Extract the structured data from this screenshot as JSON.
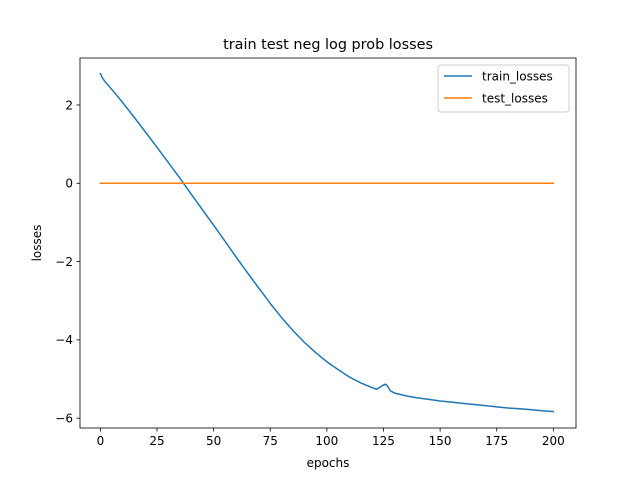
{
  "chart_data": {
    "type": "line",
    "title": "train test neg log prob losses",
    "xlabel": "epochs",
    "ylabel": "losses",
    "xlim": [
      -9,
      210
    ],
    "ylim": [
      -6.25,
      3.2
    ],
    "xticks": [
      0,
      25,
      50,
      75,
      100,
      125,
      150,
      175,
      200
    ],
    "yticks": [
      -6,
      -4,
      -2,
      0,
      2
    ],
    "ytick_labels": [
      "−6",
      "−4",
      "−2",
      "0",
      "2"
    ],
    "grid": false,
    "legend_position": "upper-right",
    "series": [
      {
        "name": "train_losses",
        "color": "#1f77b4",
        "x": [
          0,
          1,
          2,
          5,
          10,
          15,
          20,
          25,
          30,
          35,
          40,
          45,
          50,
          55,
          60,
          65,
          70,
          75,
          80,
          85,
          90,
          95,
          100,
          105,
          110,
          115,
          120,
          122,
          125,
          126,
          127,
          128,
          130,
          135,
          140,
          145,
          150,
          155,
          160,
          165,
          170,
          175,
          180,
          185,
          190,
          195,
          200
        ],
        "y": [
          2.8,
          2.68,
          2.6,
          2.4,
          2.05,
          1.68,
          1.3,
          0.92,
          0.53,
          0.14,
          -0.27,
          -0.67,
          -1.07,
          -1.48,
          -1.89,
          -2.29,
          -2.68,
          -3.07,
          -3.43,
          -3.76,
          -4.06,
          -4.32,
          -4.56,
          -4.76,
          -4.95,
          -5.1,
          -5.22,
          -5.26,
          -5.15,
          -5.13,
          -5.2,
          -5.3,
          -5.36,
          -5.43,
          -5.48,
          -5.52,
          -5.56,
          -5.59,
          -5.62,
          -5.65,
          -5.68,
          -5.71,
          -5.74,
          -5.76,
          -5.78,
          -5.81,
          -5.83
        ]
      },
      {
        "name": "test_losses",
        "color": "#ff7f0e",
        "x": [
          0,
          200
        ],
        "y": [
          0,
          0
        ]
      }
    ]
  }
}
